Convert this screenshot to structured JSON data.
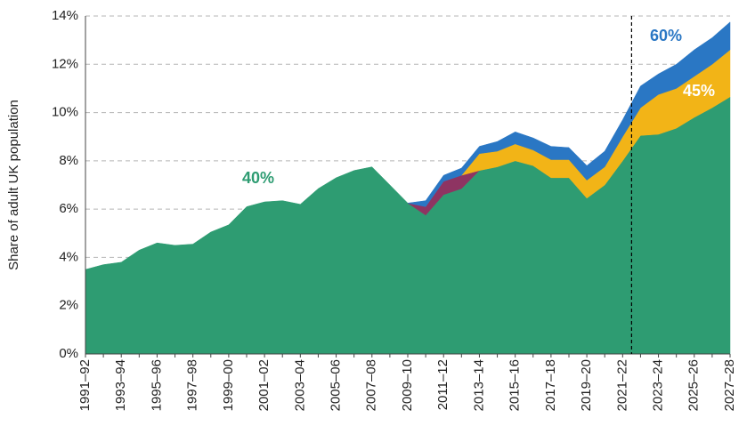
{
  "chart_data": {
    "type": "stacked_area",
    "y_label": "Share of adult UK population",
    "categories": [
      "1991–92",
      null,
      "1993–94",
      null,
      "1995–96",
      null,
      "1997–98",
      null,
      "1999–00",
      null,
      "2001–02",
      null,
      "2003–04",
      null,
      "2005–06",
      null,
      "2007–08",
      null,
      "2009–10",
      null,
      "2011–12",
      null,
      "2013–14",
      null,
      "2015–16",
      null,
      "2017–18",
      null,
      "2019–20",
      null,
      "2021–22",
      null,
      "2023–24",
      null,
      "2025–26",
      null,
      "2027–28"
    ],
    "series": [
      {
        "name": "40%",
        "color": "#2e9c72",
        "values": [
          3.5,
          3.7,
          3.8,
          4.3,
          4.6,
          4.5,
          4.55,
          5.05,
          5.35,
          6.1,
          6.3,
          6.35,
          6.2,
          6.85,
          7.3,
          7.6,
          7.75,
          7.0,
          6.25,
          5.75,
          6.6,
          6.85,
          7.6,
          7.75,
          8.0,
          7.8,
          7.3,
          7.3,
          6.45,
          7.0,
          8.0,
          9.05,
          9.1,
          9.35,
          9.8,
          10.2,
          10.65
        ]
      },
      {
        "color": "#8e3462",
        "values": [
          null,
          null,
          null,
          null,
          null,
          null,
          null,
          null,
          null,
          null,
          null,
          null,
          null,
          null,
          null,
          null,
          null,
          null,
          0,
          0.35,
          0.55,
          0.55,
          0,
          null,
          null,
          null,
          null,
          null,
          null,
          null,
          null,
          null,
          null,
          null,
          null,
          null,
          null
        ]
      },
      {
        "name": "45%",
        "color": "#f2b417",
        "values": [
          null,
          null,
          null,
          null,
          null,
          null,
          null,
          null,
          null,
          null,
          null,
          null,
          null,
          null,
          null,
          null,
          null,
          null,
          null,
          null,
          null,
          0,
          0.7,
          0.65,
          0.7,
          0.65,
          0.75,
          0.75,
          0.75,
          0.75,
          1.0,
          1.15,
          1.65,
          1.65,
          1.7,
          1.8,
          1.95
        ]
      },
      {
        "name": "60%",
        "color": "#2a77c4",
        "values": [
          null,
          null,
          null,
          null,
          null,
          null,
          null,
          null,
          null,
          null,
          null,
          null,
          null,
          null,
          null,
          null,
          null,
          null,
          0,
          0.25,
          0.25,
          0.3,
          0.3,
          0.4,
          0.5,
          0.5,
          0.55,
          0.5,
          0.6,
          0.65,
          0.7,
          0.9,
          0.85,
          1.0,
          1.1,
          1.1,
          1.15
        ]
      }
    ],
    "ylim": [
      0,
      14
    ],
    "yticks": [
      {
        "value": 0,
        "label": "0%"
      },
      {
        "value": 2,
        "label": "2%"
      },
      {
        "value": 4,
        "label": "4%"
      },
      {
        "value": 6,
        "label": "6%"
      },
      {
        "value": 8,
        "label": "8%"
      },
      {
        "value": 10,
        "label": "10%"
      },
      {
        "value": 12,
        "label": "12%"
      },
      {
        "value": 14,
        "label": "14%"
      }
    ],
    "grid": true
  }
}
